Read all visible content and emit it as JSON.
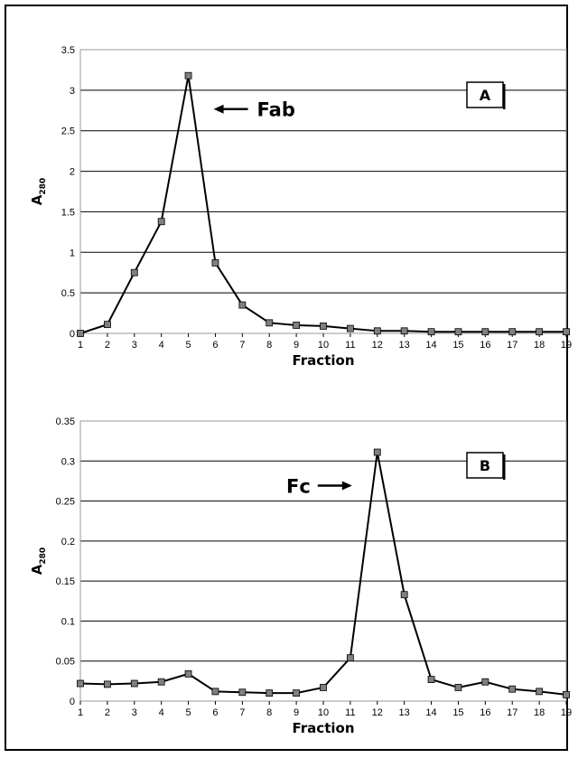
{
  "chart_data": [
    {
      "type": "line",
      "panel_label": "A",
      "title": "",
      "xlabel": "Fraction",
      "ylabel_main": "A",
      "ylabel_sub": "280",
      "x": [
        1,
        2,
        3,
        4,
        5,
        6,
        7,
        8,
        9,
        10,
        11,
        12,
        13,
        14,
        15,
        16,
        17,
        18,
        19
      ],
      "values": [
        0.0,
        0.11,
        0.75,
        1.38,
        3.18,
        0.87,
        0.35,
        0.13,
        0.1,
        0.09,
        0.06,
        0.03,
        0.03,
        0.02,
        0.02,
        0.02,
        0.02,
        0.02,
        0.02
      ],
      "ylim": [
        0,
        3.5
      ],
      "yticks": [
        "0",
        "0.5",
        "1",
        "1.5",
        "2",
        "2.5",
        "3",
        "3.5"
      ],
      "grid": true,
      "marker": "square",
      "annotation": {
        "text": "Fab",
        "arrow": "left",
        "points_to_x": 5
      }
    },
    {
      "type": "line",
      "panel_label": "B",
      "title": "",
      "xlabel": "Fraction",
      "ylabel_main": "A",
      "ylabel_sub": "280",
      "x": [
        1,
        2,
        3,
        4,
        5,
        6,
        7,
        8,
        9,
        10,
        11,
        12,
        13,
        14,
        15,
        16,
        17,
        18,
        19
      ],
      "values": [
        0.022,
        0.021,
        0.022,
        0.024,
        0.034,
        0.012,
        0.011,
        0.01,
        0.01,
        0.017,
        0.054,
        0.311,
        0.133,
        0.027,
        0.017,
        0.024,
        0.015,
        0.012,
        0.008
      ],
      "ylim": [
        0,
        0.35
      ],
      "yticks": [
        "0",
        "0.05",
        "0.1",
        "0.15",
        "0.2",
        "0.25",
        "0.3",
        "0.35"
      ],
      "grid": true,
      "marker": "square",
      "annotation": {
        "text": "Fc",
        "arrow": "right",
        "points_to_x": 12
      }
    }
  ]
}
